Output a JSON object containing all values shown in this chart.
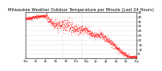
{
  "title": "Milwaukee Weather Outdoor Temperature per Minute (Last 24 Hours)",
  "line_color": "#ff0000",
  "bg_color": "#ffffff",
  "plot_bg_color": "#ffffff",
  "grid_color": "#b0b0b0",
  "ylim": [
    4,
    44
  ],
  "ytick_vals": [
    8,
    12,
    16,
    20,
    24,
    28,
    32,
    36,
    40,
    44
  ],
  "vline_positions": [
    0.33,
    0.5
  ],
  "title_fontsize": 3.8,
  "tick_fontsize": 2.8,
  "num_points": 1440,
  "seed": 99
}
